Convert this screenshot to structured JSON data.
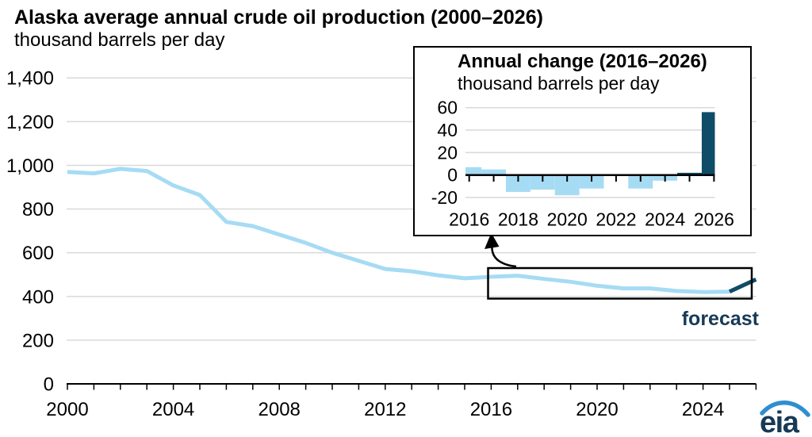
{
  "page": {
    "title": "Alaska average annual crude oil production (2000–2026)",
    "subtitle": "thousand barrels per day"
  },
  "main_chart": {
    "y_tick_labels": [
      "1,400",
      "1,200",
      "1,000",
      "800",
      "600",
      "400",
      "200",
      "0"
    ],
    "x_tick_labels": [
      "2000",
      "2004",
      "2008",
      "2012",
      "2016",
      "2020",
      "2024"
    ],
    "forecast_label": "forecast"
  },
  "inset": {
    "title": "Annual change (2016–2026)",
    "subtitle": "thousand barrels per day",
    "y_tick_labels": [
      "60",
      "40",
      "20",
      "0",
      "-20"
    ],
    "x_tick_labels": [
      "2016",
      "2018",
      "2020",
      "2022",
      "2024",
      "2026"
    ]
  },
  "logo": {
    "text": "eia"
  },
  "colors": {
    "history": "#A6DBF4",
    "forecast": "#0F4C68",
    "gridline": "#D9D9D9",
    "axis": "#000000",
    "dark_text": "#173A56",
    "logo_swoosh": "#2E8FD0"
  },
  "chart_data": [
    {
      "type": "line",
      "title": "Alaska average annual crude oil production (2000–2026)",
      "ylabel": "thousand barrels per day",
      "ylim": [
        0,
        1400
      ],
      "xlim": [
        2000,
        2026
      ],
      "grid": true,
      "legend_position": "none",
      "series": [
        {
          "name": "history",
          "x": [
            2000,
            2001,
            2002,
            2003,
            2004,
            2005,
            2006,
            2007,
            2008,
            2009,
            2010,
            2011,
            2012,
            2013,
            2014,
            2015,
            2016,
            2017,
            2018,
            2019,
            2020,
            2021,
            2022,
            2023,
            2024,
            2025
          ],
          "values": [
            970,
            963,
            984,
            974,
            908,
            864,
            741,
            722,
            683,
            645,
            600,
            563,
            526,
            515,
            497,
            483,
            490,
            495,
            480,
            467,
            449,
            437,
            437,
            425,
            420,
            422
          ]
        },
        {
          "name": "forecast",
          "x": [
            2025,
            2026
          ],
          "values": [
            422,
            478
          ]
        }
      ]
    },
    {
      "type": "bar",
      "title": "Annual change (2016–2026)",
      "ylabel": "thousand barrels per day",
      "ylim": [
        -20,
        60
      ],
      "grid": true,
      "categories": [
        2016,
        2017,
        2018,
        2019,
        2020,
        2021,
        2022,
        2023,
        2024,
        2025,
        2026
      ],
      "values": [
        7,
        5,
        -15,
        -13,
        -18,
        -12,
        0,
        -12,
        -5,
        2,
        56
      ],
      "forecast_years": [
        2025,
        2026
      ]
    }
  ]
}
